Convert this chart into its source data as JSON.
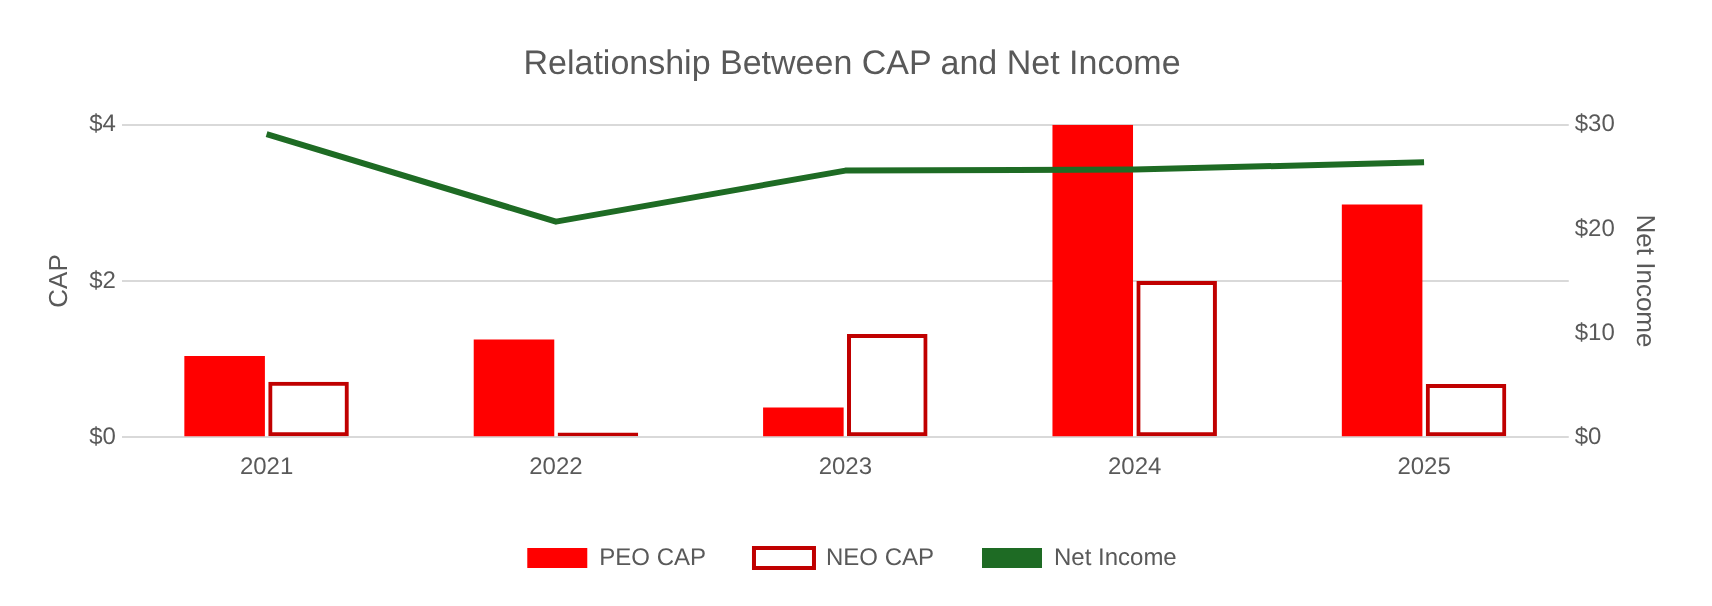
{
  "chart_data": {
    "type": "bar",
    "title": "Relationship Between CAP and Net Income",
    "ylabel": "CAP",
    "y2label": "Net Income",
    "categories": [
      "2021",
      "2022",
      "2023",
      "2024",
      "2025"
    ],
    "series": [
      {
        "name": "PEO CAP",
        "color": "#ff0000",
        "values": [
          1.04,
          1.25,
          0.38,
          4.0,
          2.98
        ]
      },
      {
        "name": "NEO CAP",
        "color": "#c00000",
        "values": [
          0.71,
          0.06,
          1.32,
          2.0,
          0.68
        ]
      },
      {
        "name": "Net Income",
        "type": "line",
        "axis": "y2",
        "color": "#1e6b24",
        "values": [
          29.1,
          20.7,
          25.6,
          25.7,
          26.4
        ]
      }
    ],
    "ylim": [
      0,
      4
    ],
    "yticks": [
      {
        "value": 0,
        "label": "$0"
      },
      {
        "value": 2,
        "label": "$2"
      },
      {
        "value": 4,
        "label": "$4"
      }
    ],
    "y2lim": [
      0,
      30
    ],
    "y2ticks": [
      {
        "value": 0,
        "label": "$0"
      },
      {
        "value": 10,
        "label": "$10"
      },
      {
        "value": 20,
        "label": "$20"
      },
      {
        "value": 30,
        "label": "$30"
      }
    ],
    "grid": "y",
    "legend": "bottom",
    "marker": "none",
    "line_style": "solid"
  }
}
